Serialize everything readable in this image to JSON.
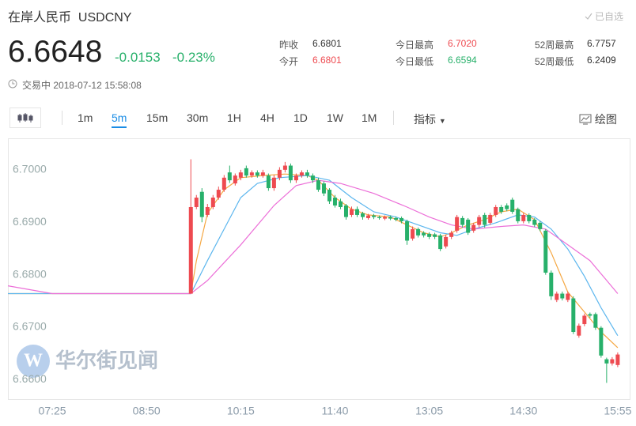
{
  "header": {
    "name": "在岸人民币",
    "code": "USDCNY",
    "watch": "已自选",
    "price": "6.6648",
    "change": "-0.0153",
    "change_pct": "-0.23%",
    "status": "交易中",
    "time": "2018-07-12 15:58:08"
  },
  "stats": [
    {
      "label": "昨收",
      "value": "6.6801",
      "tone": "flat"
    },
    {
      "label": "今开",
      "value": "6.6801",
      "tone": "up"
    },
    {
      "label": "今日最高",
      "value": "6.7020",
      "tone": "up"
    },
    {
      "label": "今日最低",
      "value": "6.6594",
      "tone": "down"
    },
    {
      "label": "52周最高",
      "value": "6.7757",
      "tone": "flat"
    },
    {
      "label": "52周最低",
      "value": "6.2409",
      "tone": "flat"
    }
  ],
  "toolbar": {
    "intervals": [
      "1m",
      "5m",
      "15m",
      "30m",
      "1H",
      "4H",
      "1D",
      "1W",
      "1M"
    ],
    "active": 1,
    "indicator": "指标",
    "draw": "绘图"
  },
  "watermark": "华尔街见闻",
  "chart_data": {
    "type": "candlestick",
    "up_color": "#ee4a50",
    "down_color": "#27b06a",
    "xlim": [
      -8,
      104.3
    ],
    "ylim": [
      6.6563,
      6.706
    ],
    "xticks": [
      {
        "value": 0,
        "label": "07:25"
      },
      {
        "value": 17,
        "label": "08:50"
      },
      {
        "value": 34,
        "label": "10:15"
      },
      {
        "value": 51,
        "label": "11:40"
      },
      {
        "value": 68,
        "label": "13:05"
      },
      {
        "value": 85,
        "label": "14:30"
      },
      {
        "value": 102,
        "label": "15:55"
      }
    ],
    "yticks": [
      {
        "value": 6.66,
        "label": "6.6600"
      },
      {
        "value": 6.67,
        "label": "6.6700"
      },
      {
        "value": 6.68,
        "label": "6.6800"
      },
      {
        "value": 6.69,
        "label": "6.6900"
      },
      {
        "value": 6.7,
        "label": "6.7000"
      }
    ],
    "x": [
      25,
      26,
      27,
      28,
      29,
      30,
      31,
      32,
      33,
      34,
      35,
      36,
      37,
      38,
      39,
      40,
      41,
      42,
      43,
      44,
      45,
      46,
      47,
      48,
      49,
      50,
      51,
      52,
      53,
      54,
      55,
      56,
      57,
      58,
      59,
      60,
      61,
      62,
      63,
      64,
      65,
      66,
      67,
      68,
      69,
      70,
      71,
      72,
      73,
      74,
      75,
      76,
      77,
      78,
      79,
      80,
      81,
      82,
      83,
      84,
      85,
      86,
      87,
      88,
      89,
      90,
      91,
      92,
      93,
      94,
      95,
      96,
      97,
      98,
      99,
      100,
      101,
      102
    ],
    "open": [
      6.6764,
      6.6929,
      6.6958,
      6.6914,
      6.6929,
      6.6947,
      6.6962,
      6.6995,
      6.6974,
      6.6985,
      6.7003,
      6.6989,
      6.6995,
      6.6989,
      6.6989,
      6.6965,
      6.6985,
      6.7,
      6.7008,
      6.698,
      6.6989,
      6.6995,
      6.6989,
      6.698,
      6.6974,
      6.6962,
      6.6947,
      6.694,
      6.6932,
      6.6914,
      6.6925,
      6.6917,
      6.6908,
      6.6913,
      6.691,
      6.6907,
      6.691,
      6.6908,
      6.6908,
      6.6902,
      6.6869,
      6.6887,
      6.688,
      6.6878,
      6.6877,
      6.6875,
      6.6854,
      6.6872,
      6.6884,
      6.6908,
      6.6905,
      6.6884,
      6.6895,
      6.6914,
      6.6899,
      6.6914,
      6.6929,
      6.6932,
      6.6943,
      6.6925,
      6.6902,
      6.6914,
      6.6905,
      6.6899,
      6.6884,
      6.6804,
      6.6752,
      6.6764,
      6.6752,
      6.6755,
      6.6684,
      6.6706,
      6.6725,
      6.6725,
      6.6699,
      6.6639,
      6.6631,
      6.6628
    ],
    "high": [
      6.702,
      6.6952,
      6.6965,
      6.6935,
      6.6952,
      6.6968,
      6.699,
      6.7008,
      6.6993,
      6.7,
      6.7008,
      6.6999,
      6.6999,
      6.7,
      6.6993,
      6.699,
      6.7005,
      6.7015,
      6.7012,
      6.6993,
      6.6999,
      6.7,
      6.6993,
      6.6985,
      6.6978,
      6.6965,
      6.6952,
      6.6945,
      6.6935,
      6.693,
      6.693,
      6.692,
      6.6916,
      6.6916,
      6.6913,
      6.6913,
      6.6913,
      6.6911,
      6.6911,
      6.6905,
      6.6892,
      6.689,
      6.6883,
      6.6881,
      6.688,
      6.6878,
      6.6876,
      6.6884,
      6.6914,
      6.6912,
      6.6908,
      6.6899,
      6.6914,
      6.6918,
      6.6918,
      6.6933,
      6.6933,
      6.6936,
      6.6947,
      6.6928,
      6.6918,
      6.6917,
      6.6908,
      6.6902,
      6.6887,
      6.6808,
      6.6768,
      6.6768,
      6.6768,
      6.6759,
      6.6707,
      6.6726,
      6.6728,
      6.6728,
      6.6702,
      6.6642,
      6.6643,
      6.6652
    ],
    "low": [
      6.6764,
      6.6925,
      6.69,
      6.691,
      6.6925,
      6.6943,
      6.6958,
      6.6975,
      6.697,
      6.698,
      6.6985,
      6.6985,
      6.6985,
      6.6985,
      6.696,
      6.696,
      6.698,
      6.6995,
      6.6975,
      6.6975,
      6.6985,
      6.6985,
      6.6975,
      6.6958,
      6.695,
      6.6935,
      6.6928,
      6.6925,
      6.6905,
      6.691,
      6.691,
      6.6905,
      6.6905,
      6.6906,
      6.6905,
      6.6904,
      6.6904,
      6.6902,
      6.6898,
      6.6857,
      6.6865,
      6.6871,
      6.6871,
      6.6868,
      6.6868,
      6.6845,
      6.685,
      6.6868,
      6.688,
      6.689,
      6.6876,
      6.688,
      6.689,
      6.689,
      6.6895,
      6.691,
      6.6916,
      6.6921,
      6.6916,
      6.6898,
      6.6898,
      6.6898,
      6.6891,
      6.6883,
      6.68,
      6.6752,
      6.6748,
      6.6751,
      6.6748,
      6.6687,
      6.668,
      6.6702,
      6.6718,
      6.6695,
      6.6642,
      6.6594,
      6.6627,
      6.6624
    ],
    "close": [
      6.6929,
      6.6947,
      6.691,
      6.6929,
      6.6947,
      6.6962,
      6.6985,
      6.698,
      6.6989,
      6.6995,
      6.6989,
      6.6995,
      6.6989,
      6.6995,
      6.6965,
      6.6985,
      6.7,
      6.7008,
      6.698,
      6.6989,
      6.6995,
      6.6989,
      6.698,
      6.6962,
      6.6955,
      6.694,
      6.6932,
      6.6929,
      6.691,
      6.6925,
      6.6914,
      6.691,
      6.6913,
      6.691,
      6.6908,
      6.691,
      6.6907,
      6.6905,
      6.6902,
      6.6865,
      6.6887,
      6.6875,
      6.6875,
      6.6872,
      6.6872,
      6.6849,
      6.6872,
      6.688,
      6.691,
      6.6895,
      6.688,
      6.6895,
      6.691,
      6.6895,
      6.6914,
      6.6929,
      6.692,
      6.6925,
      6.692,
      6.6902,
      6.6914,
      6.6902,
      6.6895,
      6.6887,
      6.6804,
      6.6759,
      6.6764,
      6.6755,
      6.6764,
      6.6691,
      6.6703,
      6.6722,
      6.6722,
      6.6699,
      6.6646,
      6.6631,
      6.6639,
      6.6648
    ],
    "series": [
      {
        "color": "#f5a742",
        "x": [
          -8,
          25,
          26,
          28,
          31,
          34,
          38,
          42,
          46,
          48,
          51,
          54,
          57,
          61,
          64,
          67,
          70,
          72,
          75,
          78,
          81,
          84,
          87,
          90,
          93,
          96,
          99,
          102
        ],
        "values": [
          6.6764,
          6.6764,
          6.6827,
          6.6917,
          6.6962,
          6.6985,
          6.6989,
          6.6992,
          6.6989,
          6.698,
          6.6947,
          6.6925,
          6.6914,
          6.691,
          6.6895,
          6.688,
          6.6872,
          6.688,
          6.6895,
          6.6905,
          6.692,
          6.6925,
          6.6905,
          6.6842,
          6.6767,
          6.6729,
          6.6691,
          6.6661
        ]
      },
      {
        "color": "#5cb6ee",
        "x": [
          -8,
          25,
          28,
          31,
          34,
          37,
          41,
          46,
          50,
          54,
          58,
          62,
          66,
          70,
          73,
          76,
          80,
          84,
          87,
          90,
          93,
          96,
          99,
          102
        ],
        "values": [
          6.6764,
          6.6764,
          6.6827,
          6.6887,
          6.6947,
          6.6974,
          6.6985,
          6.6989,
          6.698,
          6.6947,
          6.692,
          6.691,
          6.6895,
          6.688,
          6.6875,
          6.6887,
          6.6899,
          6.6914,
          6.691,
          6.6887,
          6.6849,
          6.6797,
          6.6737,
          6.6684
        ]
      },
      {
        "color": "#ec6fd8",
        "x": [
          -8,
          0,
          25,
          28,
          34,
          40,
          44,
          48,
          52,
          58,
          64,
          68,
          72,
          76,
          81,
          85,
          89,
          93,
          97,
          102
        ],
        "values": [
          6.6779,
          6.6764,
          6.6764,
          6.6789,
          6.6857,
          6.6932,
          6.697,
          6.698,
          6.6974,
          6.6955,
          6.6929,
          6.691,
          6.6895,
          6.6887,
          6.6892,
          6.6895,
          6.6887,
          6.6857,
          6.6827,
          6.6764
        ]
      }
    ]
  }
}
